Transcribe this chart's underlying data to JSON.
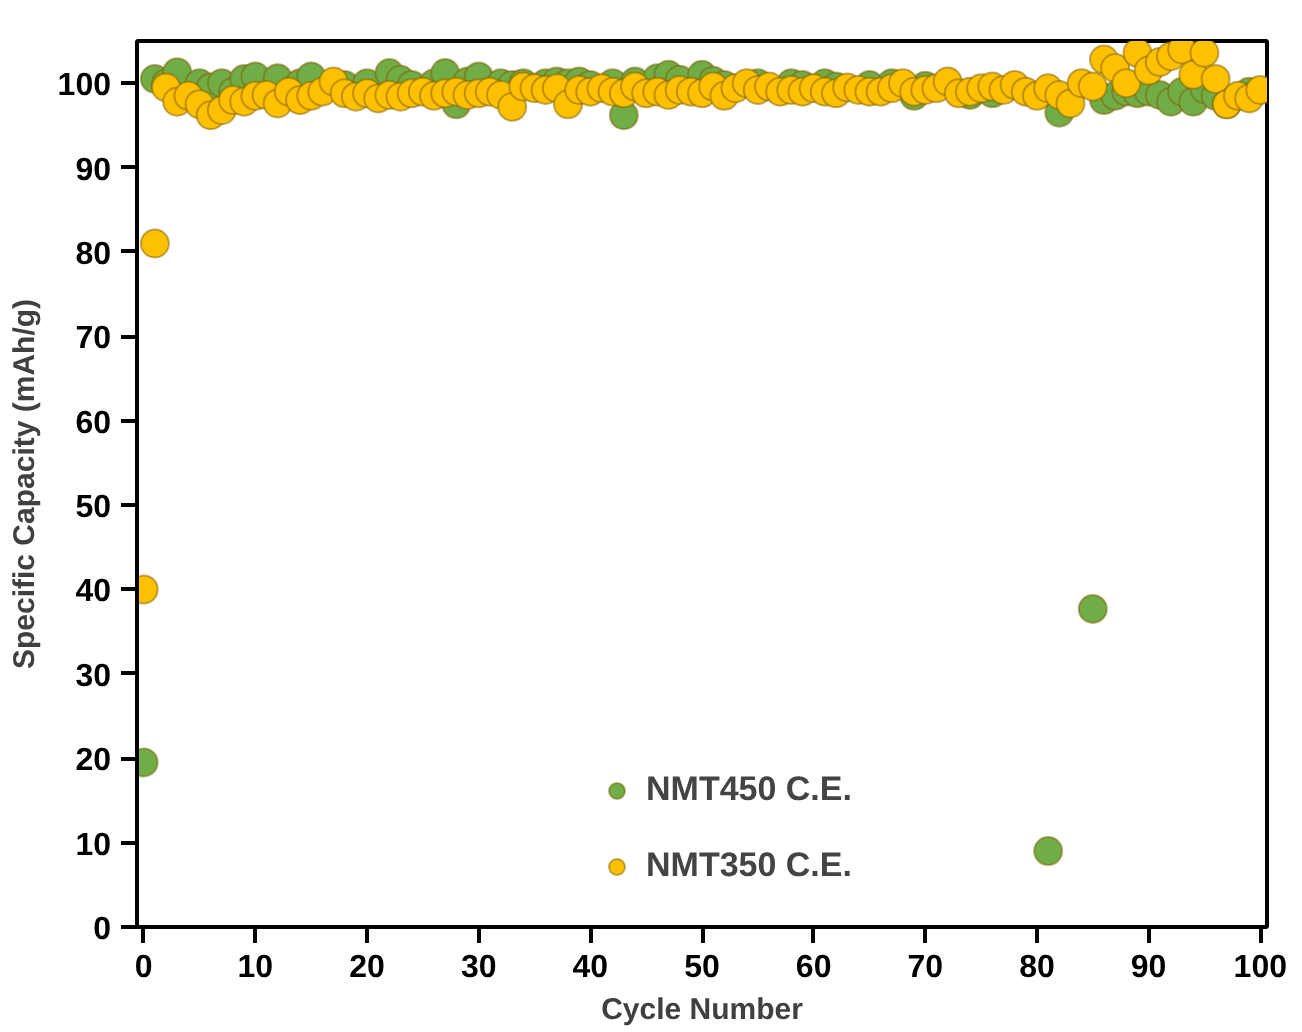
{
  "chart_data": {
    "type": "scatter",
    "xlabel": "Cycle Number",
    "ylabel": "Specific Capacity (mAh/g)",
    "x": [
      0,
      1,
      2,
      3,
      4,
      5,
      6,
      7,
      8,
      9,
      10,
      11,
      12,
      13,
      14,
      15,
      16,
      17,
      18,
      19,
      20,
      21,
      22,
      23,
      24,
      25,
      26,
      27,
      28,
      29,
      30,
      31,
      32,
      33,
      34,
      35,
      36,
      37,
      38,
      39,
      40,
      41,
      42,
      43,
      44,
      45,
      46,
      47,
      48,
      49,
      50,
      51,
      52,
      53,
      54,
      55,
      56,
      57,
      58,
      59,
      60,
      61,
      62,
      63,
      64,
      65,
      66,
      67,
      68,
      69,
      70,
      71,
      72,
      73,
      74,
      75,
      76,
      77,
      78,
      79,
      80,
      81,
      82,
      83,
      84,
      85,
      86,
      87,
      88,
      89,
      90,
      91,
      92,
      93,
      94,
      95,
      96,
      97,
      98,
      99,
      100
    ],
    "series": [
      {
        "name": "NMT450 C.E.",
        "color": "#70ad47",
        "values": [
          19.5,
          100.5,
          100,
          101.3,
          null,
          100,
          99.5,
          100,
          99,
          100.5,
          100.8,
          null,
          100.6,
          null,
          100,
          100.8,
          null,
          null,
          99.8,
          null,
          100,
          null,
          101.2,
          100.4,
          99.8,
          null,
          100,
          101.2,
          97.5,
          100.2,
          100.8,
          null,
          100,
          99.8,
          100,
          null,
          100,
          100.2,
          100,
          100.2,
          99.8,
          null,
          100,
          96.2,
          100.2,
          null,
          100.6,
          101,
          100.4,
          null,
          101,
          100.3,
          99.8,
          null,
          null,
          100,
          null,
          null,
          100,
          99.8,
          null,
          100,
          99.6,
          null,
          null,
          99.8,
          null,
          100,
          null,
          98.5,
          99.7,
          null,
          null,
          null,
          98.6,
          null,
          98.8,
          null,
          null,
          null,
          null,
          9,
          96.5,
          null,
          null,
          37.7,
          98,
          98.5,
          99,
          98.8,
          99,
          98.6,
          97.8,
          99,
          97.8,
          99.3,
          98.5,
          97.5,
          null,
          99,
          null
        ]
      },
      {
        "name": "NMT350 C.E.",
        "color": "#ffc000",
        "values": [
          40,
          81,
          99.5,
          97.8,
          98.5,
          97.5,
          96.2,
          96.8,
          98,
          97.8,
          98.5,
          98.6,
          97.6,
          99,
          98,
          98.5,
          99,
          100.2,
          98.8,
          98.4,
          98.8,
          98.2,
          98.6,
          98.4,
          98.8,
          99,
          98.5,
          98.8,
          99,
          98.6,
          98.8,
          99,
          98.6,
          97.2,
          99.6,
          99.4,
          99.2,
          99.4,
          97.5,
          99.2,
          99,
          99.4,
          99,
          98.8,
          99.6,
          98.8,
          99,
          98.6,
          99.2,
          99,
          98.8,
          99.6,
          98.5,
          99.4,
          100,
          99.2,
          99.6,
          99,
          99.2,
          99,
          99.4,
          99,
          98.8,
          99.5,
          99.2,
          99,
          99,
          99.4,
          100,
          99,
          99.2,
          99.4,
          100.2,
          98.8,
          99,
          99.4,
          99.6,
          99.2,
          99.8,
          99,
          98.5,
          99.4,
          98.6,
          97.6,
          100,
          99.6,
          102.8,
          101.8,
          100,
          103.6,
          101.5,
          102.5,
          103.2,
          104,
          101,
          103.6,
          100.5,
          97.5,
          98.5,
          98.2,
          99.2
        ]
      }
    ],
    "xlim": [
      -0.6,
      100.6
    ],
    "ylim": [
      0,
      105
    ],
    "xticks": [
      0,
      10,
      20,
      30,
      40,
      50,
      60,
      70,
      80,
      90,
      100
    ],
    "yticks": [
      0,
      10,
      20,
      30,
      40,
      50,
      60,
      70,
      80,
      90,
      100
    ],
    "grid": false,
    "legend": "bottom",
    "marker": "circle"
  }
}
